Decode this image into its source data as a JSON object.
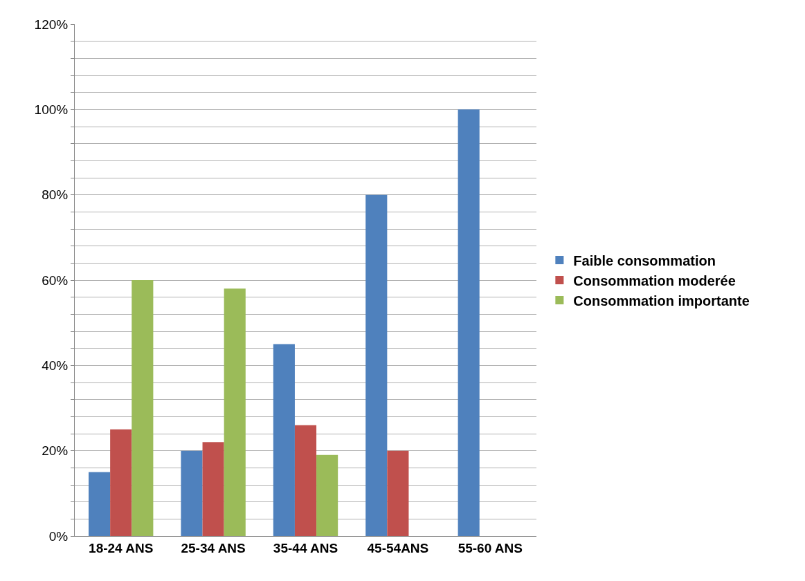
{
  "chart_data": {
    "type": "bar",
    "categories": [
      "18-24 ANS",
      "25-34 ANS",
      "35-44 ANS",
      "45-54ANS",
      "55-60 ANS"
    ],
    "series": [
      {
        "name": "Faible consommation",
        "color": "#4f81bd",
        "values": [
          15,
          20,
          45,
          80,
          100
        ]
      },
      {
        "name": "Consommation moderée",
        "color": "#c0504d",
        "values": [
          25,
          22,
          26,
          20,
          null
        ]
      },
      {
        "name": "Consommation importante",
        "color": "#9bbb59",
        "values": [
          60,
          58,
          19,
          null,
          null
        ]
      }
    ],
    "ylim": [
      0,
      120
    ],
    "yticks": [
      {
        "value": 0,
        "label": "0%"
      },
      {
        "value": 4,
        "label": null
      },
      {
        "value": 8,
        "label": null
      },
      {
        "value": 12,
        "label": null
      },
      {
        "value": 16,
        "label": null
      },
      {
        "value": 20,
        "label": "20%"
      },
      {
        "value": 24,
        "label": null
      },
      {
        "value": 28,
        "label": null
      },
      {
        "value": 32,
        "label": null
      },
      {
        "value": 36,
        "label": null
      },
      {
        "value": 40,
        "label": "40%"
      },
      {
        "value": 44,
        "label": null
      },
      {
        "value": 48,
        "label": null
      },
      {
        "value": 52,
        "label": null
      },
      {
        "value": 56,
        "label": null
      },
      {
        "value": 60,
        "label": "60%"
      },
      {
        "value": 64,
        "label": null
      },
      {
        "value": 68,
        "label": null
      },
      {
        "value": 72,
        "label": null
      },
      {
        "value": 76,
        "label": null
      },
      {
        "value": 80,
        "label": "80%"
      },
      {
        "value": 84,
        "label": null
      },
      {
        "value": 88,
        "label": null
      },
      {
        "value": 92,
        "label": null
      },
      {
        "value": 96,
        "label": null
      },
      {
        "value": 100,
        "label": "100%"
      },
      {
        "value": 104,
        "label": null
      },
      {
        "value": 108,
        "label": null
      },
      {
        "value": 112,
        "label": null
      },
      {
        "value": 116,
        "label": null
      },
      {
        "value": 120,
        "label": "120%"
      }
    ],
    "grid": "y",
    "legend": "right"
  }
}
